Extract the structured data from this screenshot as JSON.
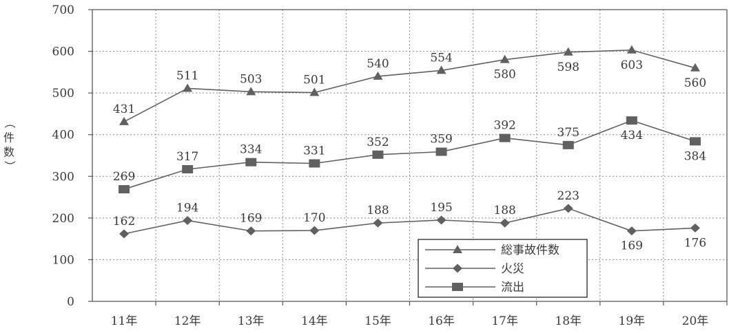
{
  "chart_data": {
    "type": "line",
    "title": "",
    "xlabel": "",
    "ylabel": "（件数）",
    "ylim": [
      0,
      700
    ],
    "yticks": [
      0,
      100,
      200,
      300,
      400,
      500,
      600,
      700
    ],
    "categories": [
      "11年",
      "12年",
      "13年",
      "14年",
      "15年",
      "16年",
      "17年",
      "18年",
      "19年",
      "20年"
    ],
    "grid": true,
    "legend_position": "bottom-right",
    "series": [
      {
        "name": "総事故件数",
        "marker": "triangle",
        "color": "#606060",
        "values": [
          431,
          511,
          503,
          501,
          540,
          554,
          580,
          598,
          603,
          560
        ]
      },
      {
        "name": "火災",
        "marker": "diamond",
        "color": "#606060",
        "values": [
          162,
          194,
          169,
          170,
          188,
          195,
          188,
          223,
          169,
          176
        ]
      },
      {
        "name": "流出",
        "marker": "square",
        "color": "#606060",
        "values": [
          269,
          317,
          334,
          331,
          352,
          359,
          392,
          375,
          434,
          384
        ]
      }
    ]
  }
}
